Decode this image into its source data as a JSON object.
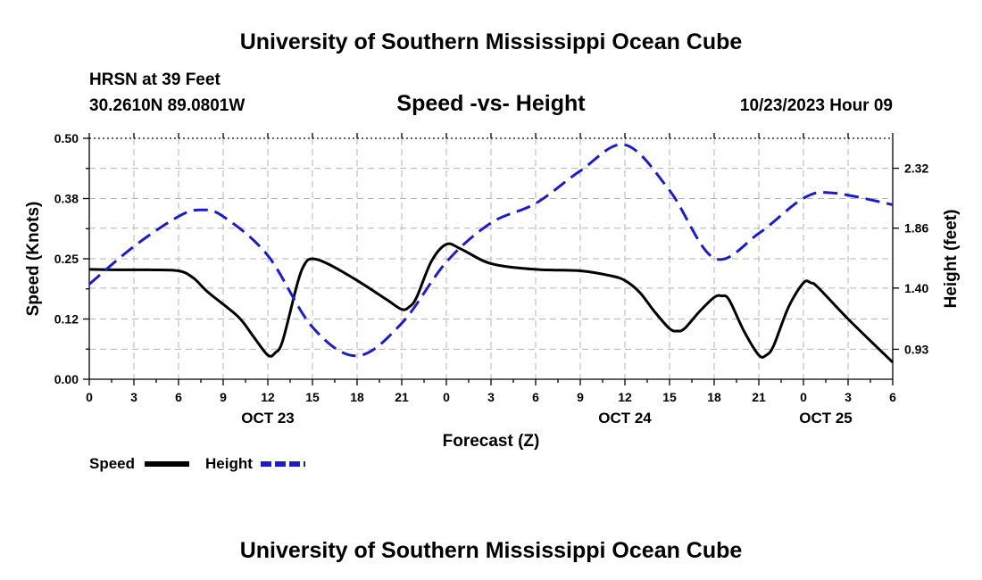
{
  "header": {
    "title_top": "University of Southern Mississippi Ocean Cube",
    "station": "HRSN at 39 Feet",
    "coords": "30.2610N  89.0801W",
    "subtitle": "Speed -vs- Height",
    "datetime": "10/23/2023 Hour 09",
    "title_bottom": "University of Southern Mississippi Ocean Cube"
  },
  "legend": {
    "speed_label": "Speed",
    "height_label": "Height"
  },
  "chart_data": {
    "type": "line",
    "title": "Speed -vs- Height",
    "xlabel": "Forecast (Z)",
    "ylabel": "Speed (Knots)",
    "y2label": "Height (feet)",
    "xlim": [
      0,
      54
    ],
    "ylim": [
      0,
      0.5
    ],
    "y2lim": [
      0.7,
      2.55
    ],
    "grid": true,
    "legend_position": "bottom-left",
    "x_ticks": [
      {
        "v": 0,
        "label": "0"
      },
      {
        "v": 3,
        "label": "3"
      },
      {
        "v": 6,
        "label": "6"
      },
      {
        "v": 9,
        "label": "9"
      },
      {
        "v": 12,
        "label": "12"
      },
      {
        "v": 15,
        "label": "15"
      },
      {
        "v": 18,
        "label": "18"
      },
      {
        "v": 21,
        "label": "21"
      },
      {
        "v": 24,
        "label": "0"
      },
      {
        "v": 27,
        "label": "3"
      },
      {
        "v": 30,
        "label": "6"
      },
      {
        "v": 33,
        "label": "9"
      },
      {
        "v": 36,
        "label": "12"
      },
      {
        "v": 39,
        "label": "15"
      },
      {
        "v": 42,
        "label": "18"
      },
      {
        "v": 45,
        "label": "21"
      },
      {
        "v": 48,
        "label": "0"
      },
      {
        "v": 51,
        "label": "3"
      },
      {
        "v": 54,
        "label": "6"
      }
    ],
    "date_labels": [
      {
        "v": 12,
        "label": "OCT 23"
      },
      {
        "v": 36,
        "label": "OCT 24"
      },
      {
        "v": 49.5,
        "label": "OCT 25"
      }
    ],
    "y_ticks": [
      {
        "v": 0,
        "label": "0.00"
      },
      {
        "v": 0.125,
        "label": "0.12"
      },
      {
        "v": 0.25,
        "label": "0.25"
      },
      {
        "v": 0.375,
        "label": "0.38"
      },
      {
        "v": 0.5,
        "label": "0.50"
      }
    ],
    "y2_ticks": [
      {
        "v": 0.93,
        "label": "0.93"
      },
      {
        "v": 1.4,
        "label": "1.40"
      },
      {
        "v": 1.86,
        "label": "1.86"
      },
      {
        "v": 2.32,
        "label": "2.32"
      }
    ],
    "series": [
      {
        "name": "Speed",
        "axis": "left",
        "color": "#000000",
        "style": "solid",
        "x": [
          0,
          2,
          4,
          6,
          7,
          8,
          10,
          11,
          12,
          12.5,
          13,
          14,
          14.5,
          15,
          16,
          18,
          20,
          21,
          21.5,
          22,
          23,
          24,
          25,
          27,
          30,
          33,
          35,
          36,
          37,
          38,
          39,
          39.5,
          40,
          41,
          42,
          42.5,
          43,
          44,
          45,
          45.5,
          46,
          47,
          48,
          48.5,
          49,
          51,
          54
        ],
        "values": [
          0.228,
          0.227,
          0.227,
          0.225,
          0.21,
          0.18,
          0.13,
          0.09,
          0.05,
          0.055,
          0.08,
          0.2,
          0.24,
          0.25,
          0.24,
          0.205,
          0.165,
          0.145,
          0.15,
          0.17,
          0.245,
          0.28,
          0.27,
          0.24,
          0.228,
          0.225,
          0.215,
          0.205,
          0.18,
          0.14,
          0.105,
          0.1,
          0.105,
          0.14,
          0.17,
          0.173,
          0.165,
          0.1,
          0.05,
          0.05,
          0.07,
          0.15,
          0.2,
          0.2,
          0.19,
          0.125,
          0.035
        ]
      },
      {
        "name": "Height",
        "axis": "right",
        "color": "#1c1cc8",
        "style": "dashed",
        "x": [
          0,
          3,
          6,
          7.5,
          9,
          12,
          15,
          18,
          21,
          24,
          27,
          30,
          33,
          36,
          39,
          42,
          45,
          48,
          50,
          54
        ],
        "values": [
          1.43,
          1.72,
          1.95,
          2.0,
          1.95,
          1.65,
          1.1,
          0.88,
          1.13,
          1.6,
          1.9,
          2.05,
          2.3,
          2.5,
          2.15,
          1.63,
          1.82,
          2.09,
          2.13,
          2.04
        ]
      }
    ]
  }
}
